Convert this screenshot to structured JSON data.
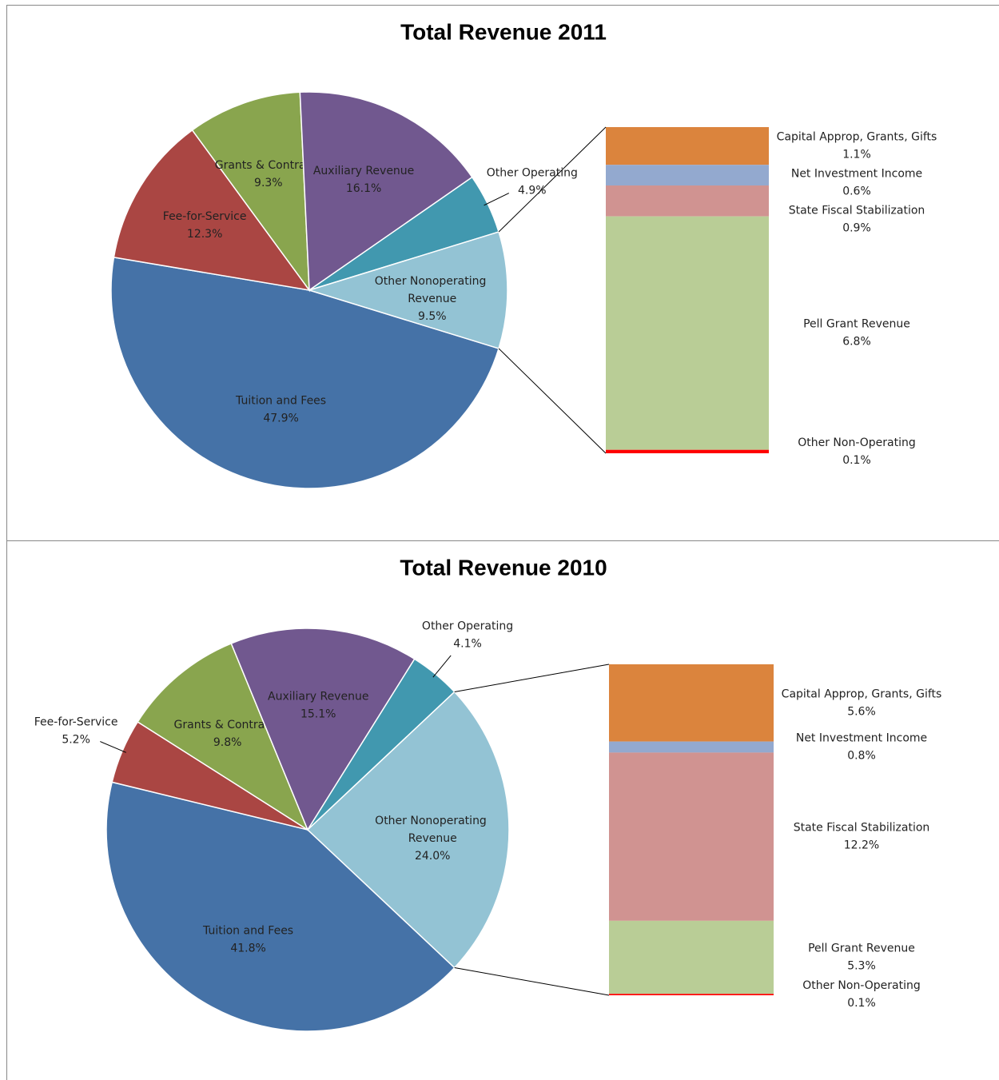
{
  "chart_data": [
    {
      "type": "pie",
      "title": "Total Revenue 2011",
      "categories": [
        "Tuition and Fees",
        "Fee-for-Service",
        "Grants & Contracts",
        "Auxiliary Revenue",
        "Other Operating",
        "Other Nonoperating Revenue"
      ],
      "values": [
        47.9,
        12.3,
        9.3,
        16.1,
        4.9,
        9.5
      ],
      "value_labels": [
        "47.9%",
        "12.3%",
        "9.3%",
        "16.1%",
        "4.9%",
        "9.5%"
      ],
      "colors": [
        "#4572a7",
        "#aa4643",
        "#89a54e",
        "#71588f",
        "#4198af",
        "#93c3d4"
      ],
      "breakdown": {
        "categories": [
          "Capital Approp, Grants, Gifts",
          "Net Investment Income",
          "State Fiscal Stabilization",
          "Pell Grant Revenue",
          "Other Non-Operating"
        ],
        "values": [
          1.1,
          0.6,
          0.9,
          6.8,
          0.1
        ],
        "value_labels": [
          "1.1%",
          "0.6%",
          "0.9%",
          "6.8%",
          "0.1%"
        ],
        "colors": [
          "#db843d",
          "#93a9cf",
          "#d09391",
          "#b9cd96",
          "#ff0000"
        ]
      }
    },
    {
      "type": "pie",
      "title": "Total Revenue 2010",
      "categories": [
        "Tuition and Fees",
        "Fee-for-Service",
        "Grants & Contracts",
        "Auxiliary Revenue",
        "Other Operating",
        "Other Nonoperating Revenue"
      ],
      "values": [
        41.8,
        5.2,
        9.8,
        15.1,
        4.1,
        24.0
      ],
      "value_labels": [
        "41.8%",
        "5.2%",
        "9.8%",
        "15.1%",
        "4.1%",
        "24.0%"
      ],
      "colors": [
        "#4572a7",
        "#aa4643",
        "#89a54e",
        "#71588f",
        "#4198af",
        "#93c3d4"
      ],
      "breakdown": {
        "categories": [
          "Capital Approp, Grants, Gifts",
          "Net Investment Income",
          "State Fiscal Stabilization",
          "Pell Grant Revenue",
          "Other Non-Operating"
        ],
        "values": [
          5.6,
          0.8,
          12.2,
          5.3,
          0.1
        ],
        "value_labels": [
          "5.6%",
          "0.8%",
          "12.2%",
          "5.3%",
          "0.1%"
        ],
        "colors": [
          "#db843d",
          "#93a9cf",
          "#d09391",
          "#b9cd96",
          "#ff0000"
        ]
      }
    }
  ]
}
